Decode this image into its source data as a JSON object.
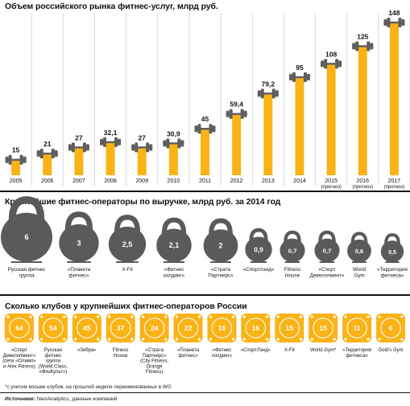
{
  "titles": {
    "market": "Объем российского рынка фитнес-услуг, млрд руб.",
    "operators": "Крупнейшие фитнес-операторы по выручке, млрд руб. за 2014 год",
    "clubs": "Сколько клубов у крупнейших фитнес-операторов России"
  },
  "footnote": "*с учетом восьми клубов, на прошлой неделе переименованных в WG",
  "source_label": "Источники:",
  "source_text": "NeoAnalytics, данные компаний",
  "colors": {
    "accent": "#F9B316",
    "dumbbell": "#5E5E5E",
    "kettlebell": "#5A5A5A",
    "grid": "#CFCFCF"
  },
  "chart_data": [
    {
      "type": "bar",
      "title": "Объем российского рынка фитнес-услуг, млрд руб.",
      "categories": [
        "2005",
        "2006",
        "2007",
        "2008",
        "2009",
        "2010",
        "2011",
        "2012",
        "2013",
        "2014",
        "2015",
        "2016",
        "2017"
      ],
      "category_notes": [
        "",
        "",
        "",
        "",
        "",
        "",
        "",
        "",
        "",
        "",
        "(прогноз)",
        "(прогноз)",
        "(прогноз)"
      ],
      "values": [
        15,
        21,
        27,
        32.1,
        27,
        30.9,
        45,
        59.4,
        79.2,
        95,
        108,
        125,
        148
      ],
      "value_labels": [
        "15",
        "21",
        "27",
        "32,1",
        "27",
        "30,9",
        "45",
        "59,4",
        "79,2",
        "95",
        "108",
        "125",
        "148"
      ],
      "ylim": [
        0,
        148
      ],
      "marker": "dumbbell"
    },
    {
      "type": "bar",
      "title": "Крупнейшие фитнес-операторы по выручке, млрд руб. за 2014 год",
      "categories": [
        "Русская фитнес группа",
        "«Планета фитнес»",
        "X-Fit",
        "«Фитнес холдинг»",
        "«Страта Партнерс»",
        "«Спортлэнд»",
        "Fitness House",
        "«Спорт Девелопмент»",
        "World Gym",
        "«Территория фитнеса»"
      ],
      "values": [
        6,
        3,
        2.5,
        2.1,
        2,
        0.9,
        0.7,
        0.7,
        0.6,
        0.5
      ],
      "value_labels": [
        "6",
        "3",
        "2,5",
        "2,1",
        "2",
        "0,9",
        "0,7",
        "0,7",
        "0,6",
        "0,5"
      ],
      "marker": "kettlebell"
    },
    {
      "type": "bar",
      "title": "Сколько клубов у крупнейших фитнес-операторов России",
      "categories": [
        "«Спорт Девелопмент» (сети «Олимп» и Alex Fitness)",
        "Русская фитнес группа (World Class, «ФизКульт»)",
        "«Зебра»",
        "Fitness House",
        "«Страта Партнерс» (City Fitness, Orange Fitness)",
        "«Планета фитнес»",
        "«Фитнес холдинг»",
        "«СпортЛэнд»",
        "X-Fit",
        "World Gym*",
        "«Территория фитнеса»",
        "Gold's Gym"
      ],
      "values": [
        64,
        54,
        45,
        37,
        24,
        22,
        18,
        16,
        15,
        15,
        11,
        6
      ],
      "marker": "weight-plate"
    }
  ]
}
